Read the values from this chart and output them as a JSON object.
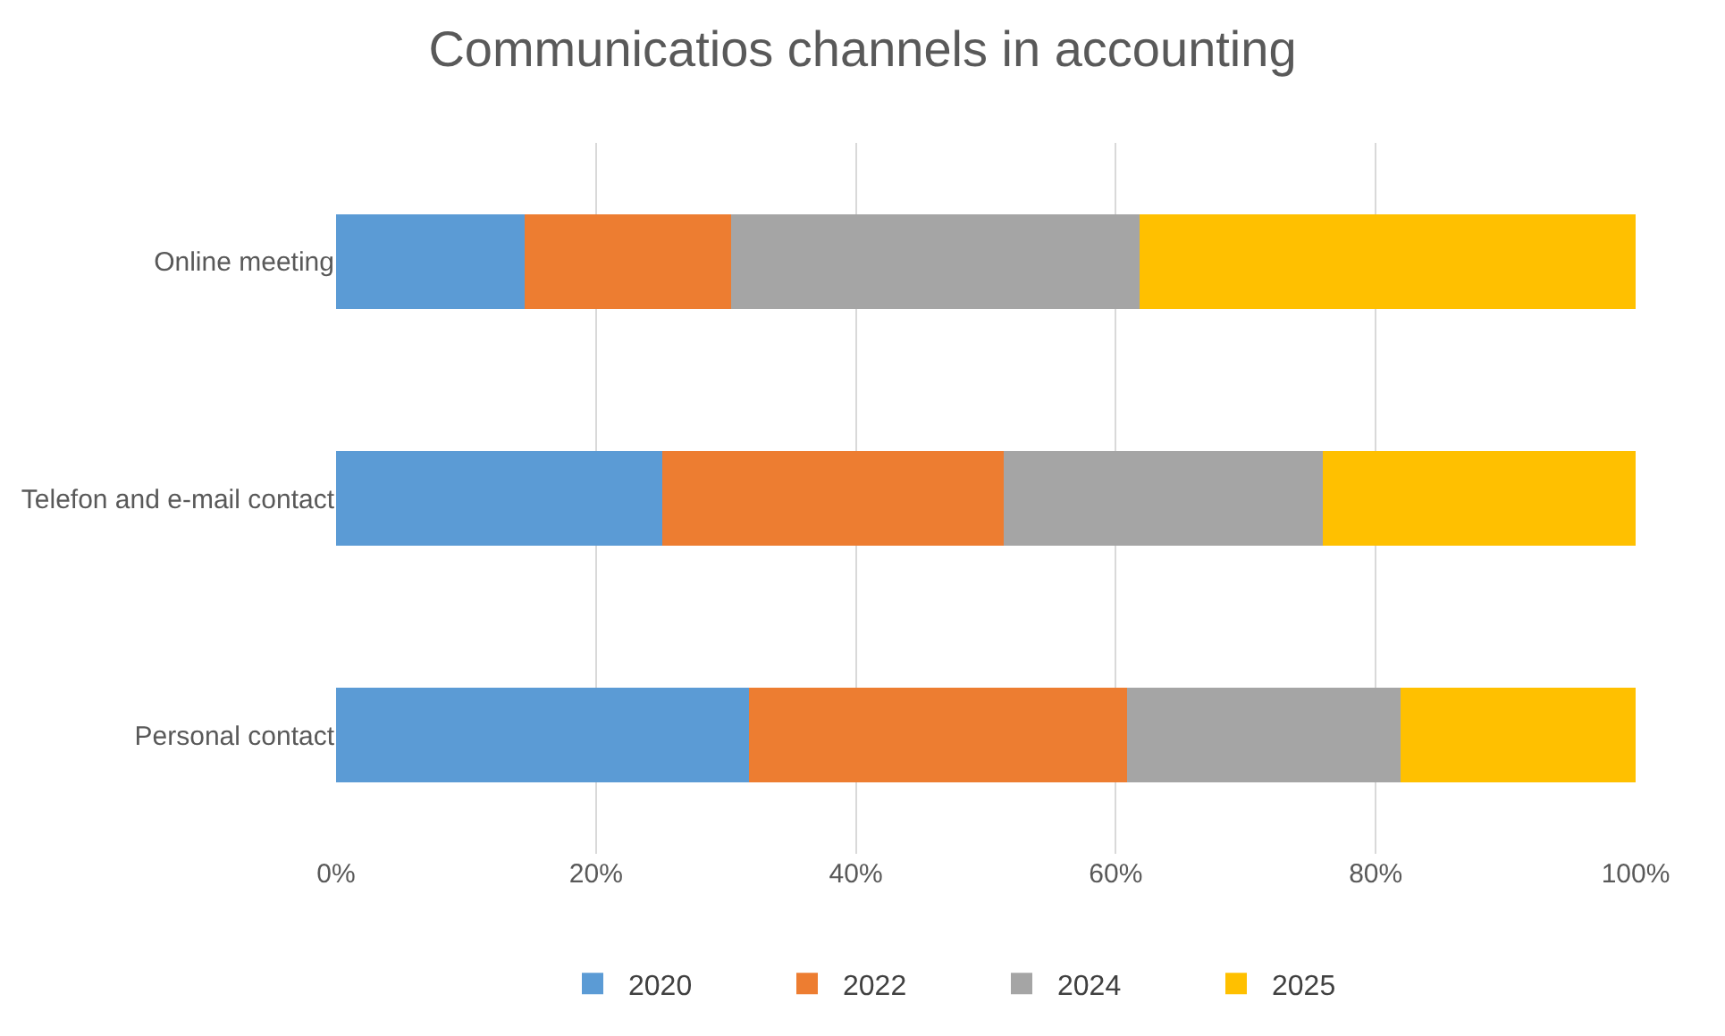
{
  "chart_data": {
    "type": "bar",
    "orientation": "horizontal",
    "stacked": true,
    "title": "Communicatios channels in accounting",
    "categories": [
      "Online meeting",
      "Telefon and e-mail contact",
      "Personal contact"
    ],
    "series": [
      {
        "name": "2020",
        "color": "#5b9bd5",
        "values": [
          14.5,
          25.1,
          31.8
        ]
      },
      {
        "name": "2022",
        "color": "#ed7d31",
        "values": [
          15.9,
          26.3,
          29.1
        ]
      },
      {
        "name": "2024",
        "color": "#a5a5a5",
        "values": [
          31.4,
          24.5,
          21.0
        ]
      },
      {
        "name": "2025",
        "color": "#ffc000",
        "values": [
          38.2,
          24.1,
          18.1
        ]
      }
    ],
    "xlim": [
      0,
      100
    ],
    "xticks": [
      {
        "value": 0,
        "label": "0%"
      },
      {
        "value": 20,
        "label": "20%"
      },
      {
        "value": 40,
        "label": "40%"
      },
      {
        "value": 60,
        "label": "60%"
      },
      {
        "value": 80,
        "label": "80%"
      },
      {
        "value": 100,
        "label": "100%"
      }
    ],
    "grid": "x",
    "legend": "bottom"
  }
}
